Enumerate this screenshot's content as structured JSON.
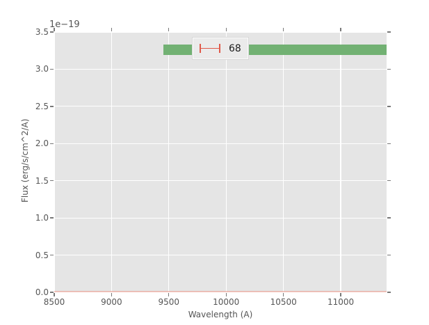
{
  "chart_data": {
    "type": "line",
    "title": "",
    "xlabel": "Wavelength (A)",
    "ylabel": "Flux (erg/s/cm^2/A)",
    "offset_label": "1e−19",
    "y_unit": "1e-19",
    "xlim": [
      8500,
      11400
    ],
    "ylim": [
      0.0,
      3.5
    ],
    "grid": true,
    "xticks": [
      {
        "value": 8500,
        "label": "8500"
      },
      {
        "value": 9000,
        "label": "9000"
      },
      {
        "value": 9500,
        "label": "9500"
      },
      {
        "value": 10000,
        "label": "10000"
      },
      {
        "value": 10500,
        "label": "10500"
      },
      {
        "value": 11000,
        "label": "11000"
      }
    ],
    "yticks": [
      {
        "value": 0.0,
        "label": "0.0"
      },
      {
        "value": 0.5,
        "label": "0.5"
      },
      {
        "value": 1.0,
        "label": "1.0"
      },
      {
        "value": 1.5,
        "label": "1.5"
      },
      {
        "value": 2.0,
        "label": "2.0"
      },
      {
        "value": 2.5,
        "label": "2.5"
      },
      {
        "value": 3.0,
        "label": "3.0"
      },
      {
        "value": 3.5,
        "label": "3.5"
      }
    ],
    "legend": {
      "position": "upper center",
      "entries": [
        {
          "label": "68",
          "marker": "errorbar-xcaps",
          "color": "#e05a4a"
        }
      ]
    },
    "series": [
      {
        "name": "confidence-band-68",
        "type": "hspan",
        "x_start": 9450,
        "x_end": 11400,
        "y_low": 3.19,
        "y_high": 3.33,
        "color": "#72b173"
      },
      {
        "name": "flux-spectrum",
        "type": "line",
        "x_start": 8500,
        "x_end": 11400,
        "y_level": 0.012,
        "color": "rgba(226,74,51,0.3)"
      }
    ]
  },
  "colors": {
    "axes_background": "#e5e5e5",
    "grid": "#ffffff",
    "text": "#555555",
    "tick": "#787878",
    "band_green": "#72b173",
    "errorbar_red": "#e05a4a",
    "flux_line": "rgba(226,74,51,0.3)",
    "legend_background": "#ebebeb"
  }
}
